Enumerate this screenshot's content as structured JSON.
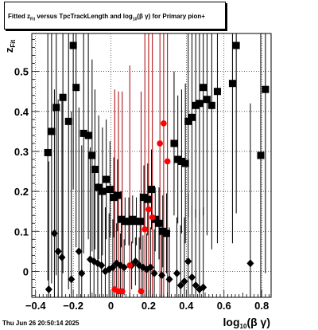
{
  "title": {
    "part1": "Fitted  z",
    "sub1": "Fit",
    "part2": "  versus TpcTrackLength and log",
    "sub2": "10",
    "part3": "(β  γ) for Primary pion+"
  },
  "footer": {
    "timestamp": "Thu Jun 26 20:50:14 2025"
  },
  "chart_data": {
    "type": "scatter",
    "title": "Fitted z_Fit versus TpcTrackLength and log10(β γ) for Primary pion+",
    "xlabel": "log10(β γ)",
    "ylabel": "z_Fit",
    "xlim": [
      -0.42,
      0.85
    ],
    "ylim": [
      -0.065,
      0.595
    ],
    "xticks": [
      -0.4,
      -0.2,
      0,
      0.2,
      0.4,
      0.6,
      0.8
    ],
    "xtick_labels": [
      "−0.4",
      "−0.2",
      "0",
      "0.2",
      "0.4",
      "0.6",
      "0.8"
    ],
    "yticks": [
      0,
      0.1,
      0.2,
      0.3,
      0.4,
      0.5
    ],
    "ytick_labels": [
      "0",
      "0.1",
      "0.2",
      "0.3",
      "0.4",
      "0.5"
    ],
    "grid": true,
    "series": [
      {
        "marker": "square",
        "color": "#000000",
        "points": [
          {
            "x": -0.335,
            "y": 0.297,
            "err": 0.32
          },
          {
            "x": -0.315,
            "y": 0.35,
            "err": 0.38
          },
          {
            "x": -0.29,
            "y": 0.41,
            "err": 0.42
          },
          {
            "x": -0.255,
            "y": 0.435,
            "err": 0.44
          },
          {
            "x": -0.225,
            "y": 0.375,
            "err": 0.42
          },
          {
            "x": -0.2,
            "y": 0.565,
            "err": 0.36
          },
          {
            "x": -0.185,
            "y": 0.46,
            "err": 0.4
          },
          {
            "x": -0.145,
            "y": 0.345,
            "err": 0.3
          },
          {
            "x": -0.12,
            "y": 0.34,
            "err": 0.26
          },
          {
            "x": -0.1,
            "y": 0.29,
            "err": 0.24
          },
          {
            "x": -0.085,
            "y": 0.255,
            "err": 0.2
          },
          {
            "x": -0.065,
            "y": 0.21,
            "err": 0.18
          },
          {
            "x": -0.045,
            "y": 0.2,
            "err": 0.16
          },
          {
            "x": -0.025,
            "y": 0.23,
            "err": 0.15
          },
          {
            "x": -0.005,
            "y": 0.205,
            "err": 0.12
          },
          {
            "x": 0.015,
            "y": 0.185,
            "err": 0.1
          },
          {
            "x": 0.035,
            "y": 0.19,
            "err": 0.09
          },
          {
            "x": 0.055,
            "y": 0.13,
            "err": 0.07
          },
          {
            "x": 0.075,
            "y": 0.125,
            "err": 0.06
          },
          {
            "x": 0.095,
            "y": 0.125,
            "err": 0.06
          },
          {
            "x": 0.115,
            "y": 0.13,
            "err": 0.06
          },
          {
            "x": 0.135,
            "y": 0.125,
            "err": 0.06
          },
          {
            "x": 0.155,
            "y": 0.125,
            "err": 0.07
          },
          {
            "x": 0.175,
            "y": 0.185,
            "err": 0.08
          },
          {
            "x": 0.195,
            "y": 0.18,
            "err": 0.09
          },
          {
            "x": 0.215,
            "y": 0.205,
            "err": 0.1
          },
          {
            "x": 0.235,
            "y": 0.13,
            "err": 0.08
          },
          {
            "x": 0.255,
            "y": 0.12,
            "err": 0.09
          },
          {
            "x": 0.275,
            "y": 0.1,
            "err": 0.09
          },
          {
            "x": 0.295,
            "y": 0.095,
            "err": 0.1
          },
          {
            "x": 0.335,
            "y": 0.32,
            "err": 0.18
          },
          {
            "x": 0.355,
            "y": 0.28,
            "err": 0.16
          },
          {
            "x": 0.375,
            "y": 0.275,
            "err": 0.18
          },
          {
            "x": 0.395,
            "y": 0.27,
            "err": 0.2
          },
          {
            "x": 0.41,
            "y": 0.375,
            "err": 0.24
          },
          {
            "x": 0.43,
            "y": 0.385,
            "err": 0.26
          },
          {
            "x": 0.45,
            "y": 0.415,
            "err": 0.28
          },
          {
            "x": 0.47,
            "y": 0.42,
            "err": 0.3
          },
          {
            "x": 0.49,
            "y": 0.46,
            "err": 0.32
          },
          {
            "x": 0.51,
            "y": 0.43,
            "err": 0.34
          },
          {
            "x": 0.535,
            "y": 0.415,
            "err": 0.36
          },
          {
            "x": 0.565,
            "y": 0.45,
            "err": 0.38
          },
          {
            "x": 0.645,
            "y": 0.47,
            "err": 0.4
          },
          {
            "x": 0.665,
            "y": 0.565,
            "err": 0.42
          },
          {
            "x": 0.795,
            "y": 0.29,
            "err": 0.44
          },
          {
            "x": 0.82,
            "y": 0.455,
            "err": 0.46
          }
        ]
      },
      {
        "marker": "diamond",
        "color": "#000000",
        "points": [
          {
            "x": -0.33,
            "y": -0.045,
            "err": 0.32
          },
          {
            "x": -0.3,
            "y": 0.095,
            "err": 0.36
          },
          {
            "x": -0.28,
            "y": 0.05,
            "err": 0.38
          },
          {
            "x": -0.26,
            "y": 0.035,
            "err": 0.4
          },
          {
            "x": -0.21,
            "y": -0.02,
            "err": 0.42
          },
          {
            "x": -0.17,
            "y": 0.05,
            "err": 0.36
          },
          {
            "x": -0.155,
            "y": -0.005,
            "err": 0.32
          },
          {
            "x": -0.11,
            "y": 0.03,
            "err": 0.28
          },
          {
            "x": -0.09,
            "y": 0.025,
            "err": 0.24
          },
          {
            "x": -0.07,
            "y": 0.02,
            "err": 0.2
          },
          {
            "x": -0.05,
            "y": 0.015,
            "err": 0.18
          },
          {
            "x": -0.03,
            "y": 0.0,
            "err": 0.16
          },
          {
            "x": -0.01,
            "y": 0.005,
            "err": 0.14
          },
          {
            "x": 0.01,
            "y": 0.01,
            "err": 0.12
          },
          {
            "x": 0.03,
            "y": 0.02,
            "err": 0.1
          },
          {
            "x": 0.05,
            "y": 0.015,
            "err": 0.08
          },
          {
            "x": 0.07,
            "y": 0.01,
            "err": 0.07
          },
          {
            "x": 0.11,
            "y": 0.015,
            "err": 0.06
          },
          {
            "x": 0.13,
            "y": 0.025,
            "err": 0.06
          },
          {
            "x": 0.15,
            "y": 0.015,
            "err": 0.07
          },
          {
            "x": 0.17,
            "y": 0.01,
            "err": 0.08
          },
          {
            "x": 0.19,
            "y": 0.005,
            "err": 0.09
          },
          {
            "x": 0.21,
            "y": 0.01,
            "err": 0.1
          },
          {
            "x": 0.23,
            "y": -0.005,
            "err": 0.11
          },
          {
            "x": 0.27,
            "y": -0.01,
            "err": 0.12
          },
          {
            "x": 0.31,
            "y": -0.02,
            "err": 0.13
          },
          {
            "x": 0.35,
            "y": -0.005,
            "err": 0.14
          },
          {
            "x": 0.37,
            "y": -0.035,
            "err": 0.15
          },
          {
            "x": 0.39,
            "y": -0.025,
            "err": 0.16
          },
          {
            "x": 0.41,
            "y": 0.025,
            "err": 0.17
          },
          {
            "x": 0.43,
            "y": -0.015,
            "err": 0.18
          },
          {
            "x": 0.45,
            "y": -0.035,
            "err": 0.19
          },
          {
            "x": 0.47,
            "y": -0.045,
            "err": 0.2
          },
          {
            "x": 0.49,
            "y": -0.04,
            "err": 0.2
          },
          {
            "x": 0.74,
            "y": 0.02,
            "err": 0.4
          }
        ]
      },
      {
        "marker": "circle",
        "color": "#ff0000",
        "errcolor": "#aa0000",
        "points": [
          {
            "x": 0.02,
            "y": -0.045,
            "err": 0.5
          },
          {
            "x": 0.04,
            "y": -0.05,
            "err": 0.5
          },
          {
            "x": 0.06,
            "y": -0.05,
            "err": 0.5
          },
          {
            "x": 0.1,
            "y": 0.015,
            "err": 0.5
          },
          {
            "x": 0.16,
            "y": -0.05,
            "err": 0.5
          },
          {
            "x": 0.18,
            "y": 0.105,
            "err": 0.5
          },
          {
            "x": 0.2,
            "y": 0.155,
            "err": 0.5
          },
          {
            "x": 0.22,
            "y": 0.135,
            "err": 0.5
          },
          {
            "x": 0.26,
            "y": 0.32,
            "err": 0.5
          },
          {
            "x": 0.28,
            "y": 0.37,
            "err": 0.5
          },
          {
            "x": 0.3,
            "y": 0.275,
            "err": 0.5
          }
        ]
      }
    ]
  }
}
